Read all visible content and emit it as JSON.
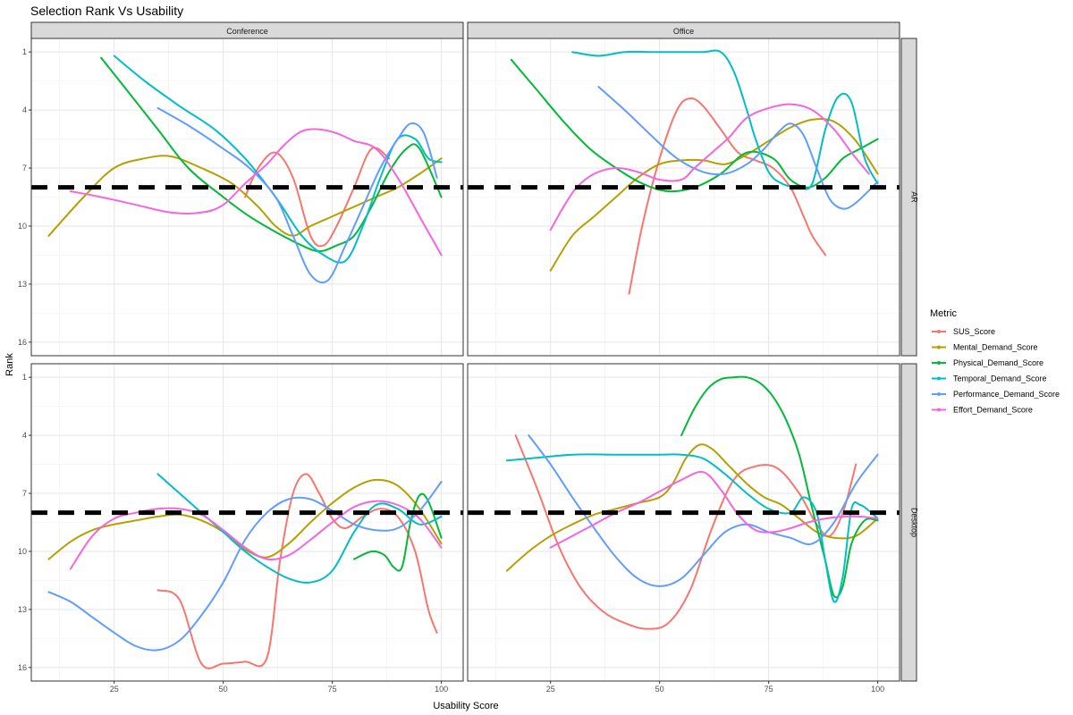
{
  "chart_data": {
    "type": "line",
    "title": "Selection Rank Vs Usability",
    "xlabel": "Usability Score",
    "ylabel": "Rank",
    "xlim": [
      6,
      105
    ],
    "ylim": [
      16.7,
      0.3
    ],
    "y_reversed": true,
    "x_ticks": [
      25,
      50,
      75,
      100
    ],
    "y_ticks": [
      1,
      4,
      7,
      10,
      13,
      16
    ],
    "grid": true,
    "reference_line": {
      "y": 8,
      "style": "dashed",
      "color": "#000000"
    },
    "facet_columns": [
      "Conference",
      "Office"
    ],
    "facet_rows": [
      "AR",
      "Desktop"
    ],
    "legend": {
      "title": "Metric",
      "position": "right"
    },
    "metrics": [
      {
        "name": "SUS_Score",
        "color": "#F8766D"
      },
      {
        "name": "Mental_Demand_Score",
        "color": "#B79F00"
      },
      {
        "name": "Physical_Demand_Score",
        "color": "#00BA38"
      },
      {
        "name": "Temporal_Demand_Score",
        "color": "#00BFC4"
      },
      {
        "name": "Performance_Demand_Score",
        "color": "#619CFF"
      },
      {
        "name": "Effort_Demand_Score",
        "color": "#F564E3"
      }
    ],
    "panels": [
      {
        "col": "Conference",
        "row": "AR",
        "series": [
          {
            "name": "SUS_Score",
            "x": [
              55,
              58,
              62,
              66,
              70,
              73,
              76,
              80,
              84,
              88
            ],
            "y": [
              8.5,
              7,
              6.2,
              7.5,
              10.5,
              11,
              10,
              8,
              6,
              6.5
            ]
          },
          {
            "name": "Mental_Demand_Score",
            "x": [
              10,
              18,
              25,
              32,
              38,
              45,
              52,
              58,
              62,
              66,
              70,
              75,
              80,
              85,
              90,
              95,
              100
            ],
            "y": [
              10.5,
              8.5,
              7,
              6.5,
              6.4,
              7,
              7.8,
              9,
              10,
              10.5,
              10,
              9.5,
              9,
              8.5,
              8,
              7.3,
              6.5
            ]
          },
          {
            "name": "Physical_Demand_Score",
            "x": [
              22,
              28,
              35,
              42,
              50,
              56,
              62,
              68,
              72,
              76,
              80,
              84,
              88,
              92,
              95,
              100
            ],
            "y": [
              1.3,
              3,
              5,
              7,
              8.5,
              9.5,
              10.3,
              11,
              11.3,
              11,
              10.5,
              9,
              7.2,
              6,
              6,
              8.5
            ]
          },
          {
            "name": "Temporal_Demand_Score",
            "x": [
              25,
              32,
              40,
              48,
              55,
              62,
              68,
              73,
              78,
              82,
              86,
              90,
              94,
              97,
              100
            ],
            "y": [
              1.2,
              2.5,
              3.8,
              5,
              6.5,
              8.5,
              10.5,
              11.5,
              11.8,
              10,
              7.5,
              5.5,
              5.5,
              6.5,
              6.7
            ]
          },
          {
            "name": "Performance_Demand_Score",
            "x": [
              35,
              42,
              50,
              56,
              62,
              66,
              70,
              74,
              78,
              82,
              86,
              90,
              93,
              96,
              99
            ],
            "y": [
              3.9,
              4.8,
              6,
              7,
              8.5,
              10.5,
              12.5,
              12.8,
              11,
              9,
              7,
              5.5,
              4.7,
              5.2,
              7.5
            ]
          },
          {
            "name": "Effort_Demand_Score",
            "x": [
              15,
              22,
              30,
              38,
              45,
              50,
              55,
              60,
              64,
              68,
              72,
              76,
              80,
              85,
              90,
              95,
              100
            ],
            "y": [
              8.2,
              8.5,
              8.9,
              9.3,
              9.3,
              8.9,
              7.8,
              6.8,
              5.8,
              5.1,
              5,
              5.2,
              5.6,
              6,
              7.5,
              9.5,
              11.5
            ]
          }
        ]
      },
      {
        "col": "Office",
        "row": "AR",
        "series": [
          {
            "name": "SUS_Score",
            "x": [
              43,
              46,
              50,
              54,
              57,
              60,
              64,
              68,
              72,
              76,
              80,
              83,
              85,
              88
            ],
            "y": [
              13.5,
              10,
              6.5,
              4,
              3.4,
              3.8,
              5,
              6.2,
              6.6,
              7,
              8,
              9.5,
              10.5,
              11.5
            ]
          },
          {
            "name": "Mental_Demand_Score",
            "x": [
              25,
              30,
              35,
              40,
              45,
              50,
              55,
              60,
              65,
              70,
              75,
              80,
              85,
              90,
              95,
              100
            ],
            "y": [
              12.3,
              10.5,
              9.5,
              8.5,
              7.5,
              6.8,
              6.6,
              6.6,
              6.8,
              6.3,
              5.6,
              4.9,
              4.5,
              4.6,
              5.6,
              7.3
            ]
          },
          {
            "name": "Physical_Demand_Score",
            "x": [
              16,
              22,
              28,
              34,
              40,
              46,
              52,
              58,
              64,
              70,
              76,
              80,
              84,
              88,
              92,
              96,
              100
            ],
            "y": [
              1.4,
              3,
              4.6,
              6,
              7,
              7.8,
              8.2,
              8,
              7.3,
              6.2,
              6.5,
              7.6,
              8,
              7.5,
              6.5,
              6,
              5.5
            ]
          },
          {
            "name": "Temporal_Demand_Score",
            "x": [
              30,
              36,
              42,
              48,
              54,
              60,
              64,
              67,
              70,
              72,
              75,
              78,
              82,
              85,
              88,
              91,
              94,
              97,
              100
            ],
            "y": [
              1,
              1.2,
              1,
              1,
              1,
              1,
              1,
              2,
              4,
              5.5,
              7.2,
              7.8,
              8,
              7.8,
              5,
              3.3,
              3.6,
              6.5,
              7.8
            ]
          },
          {
            "name": "Performance_Demand_Score",
            "x": [
              36,
              42,
              48,
              54,
              60,
              65,
              70,
              74,
              77,
              80,
              83,
              86,
              89,
              92,
              95,
              100
            ],
            "y": [
              2.8,
              4,
              5.3,
              6.5,
              7.2,
              7.3,
              6.8,
              6,
              5.2,
              4.7,
              5.3,
              7,
              8.6,
              9.1,
              8.8,
              7.7
            ]
          },
          {
            "name": "Effort_Demand_Score",
            "x": [
              25,
              28,
              31,
              35,
              40,
              45,
              50,
              55,
              58,
              62,
              66,
              70,
              75,
              80,
              85,
              90,
              94,
              98
            ],
            "y": [
              10.2,
              9,
              8,
              7.3,
              7,
              7.2,
              7.6,
              7.6,
              7,
              6.2,
              5.4,
              4.4,
              3.9,
              3.7,
              4,
              5,
              6.2,
              7.3
            ]
          }
        ]
      },
      {
        "col": "Conference",
        "row": "Desktop",
        "series": [
          {
            "name": "SUS_Score",
            "x": [
              35,
              40,
              45,
              50,
              55,
              60,
              63,
              66,
              69,
              72,
              75,
              78,
              82,
              86,
              90,
              94,
              97,
              99
            ],
            "y": [
              12,
              12.5,
              15.8,
              15.8,
              15.7,
              15.5,
              10.5,
              7,
              6,
              7,
              8.3,
              8.8,
              8.2,
              7.8,
              8.2,
              10,
              13,
              14.2
            ]
          },
          {
            "name": "Mental_Demand_Score",
            "x": [
              10,
              15,
              20,
              25,
              30,
              35,
              40,
              45,
              50,
              55,
              60,
              65,
              70,
              75,
              80,
              85,
              90,
              95,
              100
            ],
            "y": [
              10.4,
              9.5,
              8.9,
              8.6,
              8.4,
              8.2,
              8.1,
              8.4,
              9,
              9.9,
              10.3,
              9.6,
              8.5,
              7.5,
              6.7,
              6.3,
              6.6,
              7.8,
              9.6
            ]
          },
          {
            "name": "Physical_Demand_Score",
            "x": [
              80,
              84,
              87,
              89,
              91,
              93,
              95,
              97,
              100
            ],
            "y": [
              10.4,
              10,
              10.2,
              10.8,
              10.8,
              8.4,
              7.1,
              7.4,
              9.3
            ]
          },
          {
            "name": "Temporal_Demand_Score",
            "x": [
              35,
              40,
              45,
              50,
              55,
              60,
              65,
              70,
              75,
              80,
              85,
              90,
              95,
              100
            ],
            "y": [
              6,
              7,
              8,
              9,
              10,
              10.8,
              11.4,
              11.6,
              11,
              9,
              7.6,
              7.8,
              8.6,
              8.2
            ]
          },
          {
            "name": "Performance_Demand_Score",
            "x": [
              10,
              15,
              20,
              25,
              30,
              35,
              40,
              45,
              50,
              55,
              60,
              65,
              70,
              75,
              80,
              85,
              90,
              95,
              100
            ],
            "y": [
              12.1,
              12.6,
              13.4,
              14.2,
              14.9,
              15.1,
              14.6,
              13.3,
              11.6,
              9.4,
              8,
              7.3,
              7.3,
              7.9,
              8.6,
              8.9,
              8.8,
              7.9,
              6.4
            ]
          },
          {
            "name": "Effort_Demand_Score",
            "x": [
              15,
              20,
              25,
              30,
              35,
              40,
              45,
              50,
              55,
              60,
              65,
              70,
              75,
              80,
              85,
              90,
              95,
              100
            ],
            "y": [
              10.9,
              9.2,
              8.3,
              8,
              7.8,
              7.8,
              8.1,
              8.9,
              9.8,
              10.4,
              10.2,
              9.4,
              8.5,
              7.7,
              7.4,
              7.6,
              8.3,
              9.8
            ]
          }
        ]
      },
      {
        "col": "Office",
        "row": "Desktop",
        "series": [
          {
            "name": "SUS_Score",
            "x": [
              17,
              22,
              27,
              32,
              37,
              42,
              47,
              52,
              57,
              62,
              67,
              72,
              77,
              82,
              86,
              89,
              92,
              95
            ],
            "y": [
              4,
              6.8,
              9.8,
              11.9,
              13.1,
              13.7,
              14,
              13.7,
              12,
              8.8,
              6.3,
              5.6,
              5.7,
              7,
              8.6,
              9.2,
              8,
              5.5
            ]
          },
          {
            "name": "Mental_Demand_Score",
            "x": [
              15,
              20,
              25,
              30,
              35,
              40,
              45,
              50,
              53,
              56,
              59,
              62,
              66,
              70,
              74,
              78,
              82,
              86,
              90,
              95,
              100
            ],
            "y": [
              11,
              10,
              9.2,
              8.6,
              8.1,
              7.8,
              7.5,
              7.2,
              6.5,
              5.2,
              4.5,
              4.7,
              5.6,
              6.5,
              7.2,
              7.6,
              8.3,
              9,
              9.3,
              9.2,
              8.3
            ]
          },
          {
            "name": "Physical_Demand_Score",
            "x": [
              55,
              58,
              61,
              64,
              67,
              70,
              73,
              76,
              79,
              82,
              85,
              88,
              90,
              92,
              94,
              97,
              100
            ],
            "y": [
              4,
              2.6,
              1.6,
              1.1,
              1,
              1,
              1.3,
              2,
              3.2,
              5,
              7.8,
              10.5,
              12.3,
              11.8,
              9.6,
              8.4,
              8.4
            ]
          },
          {
            "name": "Temporal_Demand_Score",
            "x": [
              15,
              20,
              30,
              40,
              50,
              55,
              60,
              65,
              70,
              75,
              80,
              83,
              86,
              88,
              90,
              92,
              94,
              96,
              98,
              100
            ],
            "y": [
              5.3,
              5.2,
              5,
              5,
              5,
              5,
              5.2,
              6,
              7,
              7.8,
              8,
              7.2,
              8,
              10.5,
              12.6,
              11.3,
              7.8,
              7.6,
              7.9,
              8.3
            ]
          },
          {
            "name": "Performance_Demand_Score",
            "x": [
              20,
              25,
              30,
              35,
              40,
              45,
              50,
              55,
              60,
              65,
              70,
              75,
              80,
              85,
              90,
              95,
              100
            ],
            "y": [
              4,
              5.5,
              7.2,
              8.8,
              10.3,
              11.4,
              11.8,
              11.4,
              10.2,
              9,
              8.6,
              9,
              9.3,
              9.6,
              8.5,
              6.5,
              5
            ]
          },
          {
            "name": "Effort_Demand_Score",
            "x": [
              25,
              30,
              35,
              40,
              45,
              50,
              55,
              60,
              64,
              68,
              72,
              76,
              80,
              84,
              88,
              92,
              96,
              100
            ],
            "y": [
              9.8,
              9.2,
              8.6,
              8,
              7.5,
              6.9,
              6.3,
              5.9,
              6.8,
              8.1,
              8.9,
              9,
              8.8,
              8.5,
              8.3,
              8.2,
              8.2,
              8.3
            ]
          }
        ]
      }
    ]
  }
}
